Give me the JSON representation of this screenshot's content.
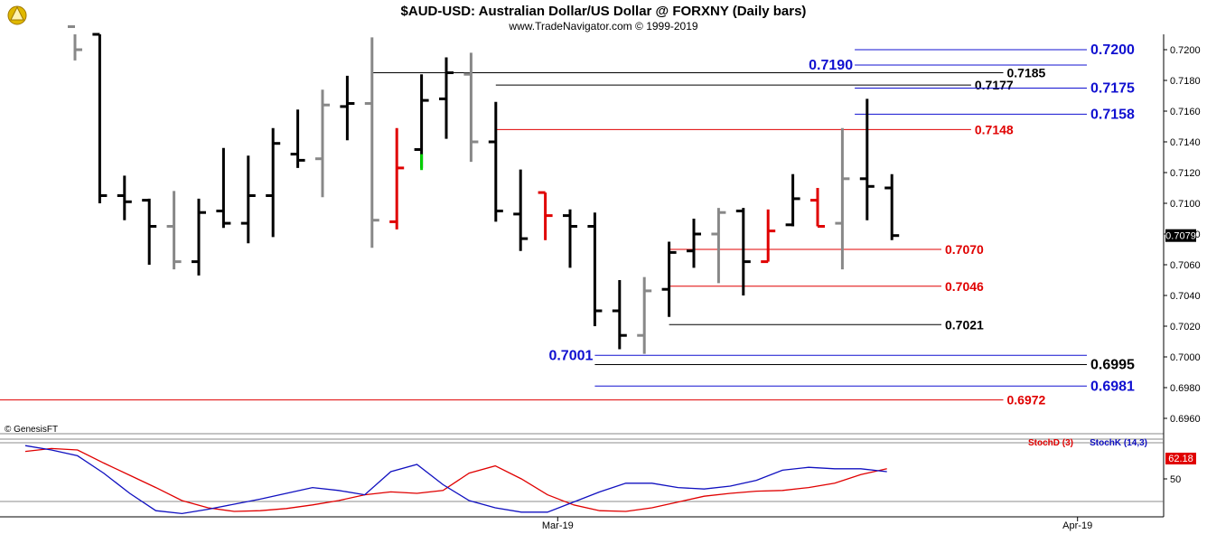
{
  "header": {
    "title": "$AUD-USD:  Australian Dollar/US Dollar @ FORXNY  (Daily bars)",
    "subtitle": "www.TradeNavigator.com © 1999-2019",
    "watermark": "© GenesisFT"
  },
  "colors": {
    "up_bar": "#000000",
    "down_bar": "#888888",
    "red_bar": "#e00000",
    "green_tick": "#00d000",
    "blue_level": "#1010d0",
    "red_level": "#e00000",
    "black_level": "#000000",
    "stoch_d": "#e00000",
    "stoch_k": "#1010c0"
  },
  "chart_data": [
    {
      "type": "ohlc",
      "timeframe": "Daily bars",
      "ylim": [
        0.695,
        0.721
      ],
      "yticks": [
        "0.7200",
        "0.7180",
        "0.7160",
        "0.7140",
        "0.7120",
        "0.7100",
        "0.7080",
        "0.7060",
        "0.7040",
        "0.7020",
        "0.7000",
        "0.6980",
        "0.6960"
      ],
      "xticks": [
        {
          "label": "Mar-19",
          "bar": 19.5
        },
        {
          "label": "Apr-19",
          "bar": 40.5
        }
      ],
      "last_price": "0.7079",
      "bars": [
        {
          "o": 0.7215,
          "h": 0.7215,
          "l": 0.7193,
          "c": 0.72,
          "color": "down"
        },
        {
          "o": 0.721,
          "h": 0.721,
          "l": 0.71,
          "c": 0.7105,
          "color": "up"
        },
        {
          "o": 0.7105,
          "h": 0.7118,
          "l": 0.7089,
          "c": 0.7101,
          "color": "up"
        },
        {
          "o": 0.7102,
          "h": 0.7103,
          "l": 0.706,
          "c": 0.7085,
          "color": "up"
        },
        {
          "o": 0.7085,
          "h": 0.7108,
          "l": 0.7057,
          "c": 0.7062,
          "color": "down"
        },
        {
          "o": 0.7062,
          "h": 0.7103,
          "l": 0.7053,
          "c": 0.7094,
          "color": "up"
        },
        {
          "o": 0.7095,
          "h": 0.7136,
          "l": 0.7084,
          "c": 0.7087,
          "color": "up"
        },
        {
          "o": 0.7087,
          "h": 0.7131,
          "l": 0.7074,
          "c": 0.7105,
          "color": "up"
        },
        {
          "o": 0.7105,
          "h": 0.7149,
          "l": 0.7078,
          "c": 0.7139,
          "color": "up"
        },
        {
          "o": 0.7132,
          "h": 0.7161,
          "l": 0.7123,
          "c": 0.7128,
          "color": "up"
        },
        {
          "o": 0.7129,
          "h": 0.7174,
          "l": 0.7104,
          "c": 0.7164,
          "color": "down"
        },
        {
          "o": 0.7163,
          "h": 0.7183,
          "l": 0.7141,
          "c": 0.7165,
          "color": "up"
        },
        {
          "o": 0.7165,
          "h": 0.7208,
          "l": 0.7071,
          "c": 0.7089,
          "color": "down"
        },
        {
          "o": 0.7088,
          "h": 0.7149,
          "l": 0.7083,
          "c": 0.7123,
          "color": "red"
        },
        {
          "o": 0.7135,
          "h": 0.7184,
          "l": 0.7123,
          "c": 0.7167,
          "color": "up",
          "green_from": 0.7132,
          "green_to": 0.7124
        },
        {
          "o": 0.7168,
          "h": 0.7195,
          "l": 0.7142,
          "c": 0.7185,
          "color": "up"
        },
        {
          "o": 0.7184,
          "h": 0.7198,
          "l": 0.7127,
          "c": 0.714,
          "color": "down"
        },
        {
          "o": 0.714,
          "h": 0.7166,
          "l": 0.7088,
          "c": 0.7095,
          "color": "up"
        },
        {
          "o": 0.7093,
          "h": 0.7122,
          "l": 0.7069,
          "c": 0.7077,
          "color": "up"
        },
        {
          "o": 0.7107,
          "h": 0.7107,
          "l": 0.7076,
          "c": 0.7092,
          "color": "red"
        },
        {
          "o": 0.7092,
          "h": 0.7096,
          "l": 0.7058,
          "c": 0.7085,
          "color": "up"
        },
        {
          "o": 0.7085,
          "h": 0.7094,
          "l": 0.702,
          "c": 0.703,
          "color": "up"
        },
        {
          "o": 0.703,
          "h": 0.705,
          "l": 0.7005,
          "c": 0.7014,
          "color": "up"
        },
        {
          "o": 0.7014,
          "h": 0.7052,
          "l": 0.7002,
          "c": 0.7043,
          "color": "down"
        },
        {
          "o": 0.7044,
          "h": 0.7075,
          "l": 0.7026,
          "c": 0.7068,
          "color": "up"
        },
        {
          "o": 0.7069,
          "h": 0.709,
          "l": 0.7058,
          "c": 0.708,
          "color": "up"
        },
        {
          "o": 0.708,
          "h": 0.7097,
          "l": 0.7048,
          "c": 0.7094,
          "color": "down"
        },
        {
          "o": 0.7095,
          "h": 0.7097,
          "l": 0.704,
          "c": 0.7062,
          "color": "up"
        },
        {
          "o": 0.7062,
          "h": 0.7096,
          "l": 0.7062,
          "c": 0.7082,
          "color": "red"
        },
        {
          "o": 0.7086,
          "h": 0.7119,
          "l": 0.7085,
          "c": 0.7103,
          "color": "up"
        },
        {
          "o": 0.7102,
          "h": 0.711,
          "l": 0.7085,
          "c": 0.7085,
          "color": "red"
        },
        {
          "o": 0.7087,
          "h": 0.7149,
          "l": 0.7057,
          "c": 0.7116,
          "color": "down"
        },
        {
          "o": 0.7116,
          "h": 0.7168,
          "l": 0.7089,
          "c": 0.7111,
          "color": "up"
        },
        {
          "o": 0.711,
          "h": 0.7119,
          "l": 0.7076,
          "c": 0.7079,
          "color": "up"
        }
      ],
      "levels": [
        {
          "value": 0.72,
          "label": "0.7200",
          "color": "blue",
          "from_bar": 31.5,
          "label_side": "right"
        },
        {
          "value": 0.719,
          "label": "0.7190",
          "color": "blue",
          "from_bar": 31.5,
          "label_side": "left"
        },
        {
          "value": 0.7185,
          "label": "0.7185",
          "color": "black",
          "from_bar": 12,
          "to_bar": 37.5,
          "label_side": "end"
        },
        {
          "value": 0.7177,
          "label": "0.7177",
          "color": "black",
          "from_bar": 17,
          "to_bar": 36.2,
          "label_side": "end"
        },
        {
          "value": 0.7175,
          "label": "0.7175",
          "color": "blue",
          "from_bar": 31.5,
          "label_side": "right"
        },
        {
          "value": 0.7158,
          "label": "0.7158",
          "color": "blue",
          "from_bar": 31.5,
          "label_side": "right"
        },
        {
          "value": 0.7148,
          "label": "0.7148",
          "color": "red",
          "from_bar": 17,
          "to_bar": 36.2,
          "label_side": "end"
        },
        {
          "value": 0.707,
          "label": "0.7070",
          "color": "red",
          "from_bar": 24,
          "to_bar": 35,
          "label_side": "end"
        },
        {
          "value": 0.7046,
          "label": "0.7046",
          "color": "red",
          "from_bar": 24,
          "to_bar": 35,
          "label_side": "end"
        },
        {
          "value": 0.7021,
          "label": "0.7021",
          "color": "black",
          "from_bar": 24,
          "to_bar": 35,
          "label_side": "end"
        },
        {
          "value": 0.7001,
          "label": "0.7001",
          "color": "blue",
          "from_bar": 21,
          "label_side": "left"
        },
        {
          "value": 0.6995,
          "label": "0.6995",
          "color": "black",
          "from_bar": 21,
          "label_side": "right"
        },
        {
          "value": 0.6981,
          "label": "0.6981",
          "color": "blue",
          "from_bar": 21,
          "label_side": "right"
        },
        {
          "value": 0.6972,
          "label": "0.6972",
          "color": "red",
          "from_bar": 0,
          "to_bar": 37.5,
          "label_side": "end"
        }
      ]
    },
    {
      "type": "line",
      "ylim": [
        0,
        100
      ],
      "yticks": [
        "50"
      ],
      "guides": [
        20,
        80
      ],
      "last_value": "62.18",
      "series": [
        {
          "name": "StochD (3)",
          "color": "red",
          "values": [
            88,
            92,
            90,
            72,
            55,
            38,
            20,
            10,
            5,
            6,
            9,
            14,
            20,
            28,
            32,
            30,
            34,
            58,
            68,
            50,
            28,
            14,
            6,
            5,
            10,
            18,
            26,
            30,
            33,
            34,
            38,
            44,
            56,
            64
          ]
        },
        {
          "name": "StochK (14,3)",
          "color": "blue",
          "values": [
            96,
            90,
            82,
            58,
            30,
            6,
            2,
            8,
            15,
            22,
            30,
            38,
            34,
            28,
            60,
            70,
            42,
            20,
            10,
            4,
            4,
            18,
            32,
            44,
            44,
            38,
            36,
            40,
            48,
            62,
            66,
            64,
            64,
            60
          ]
        }
      ]
    }
  ]
}
